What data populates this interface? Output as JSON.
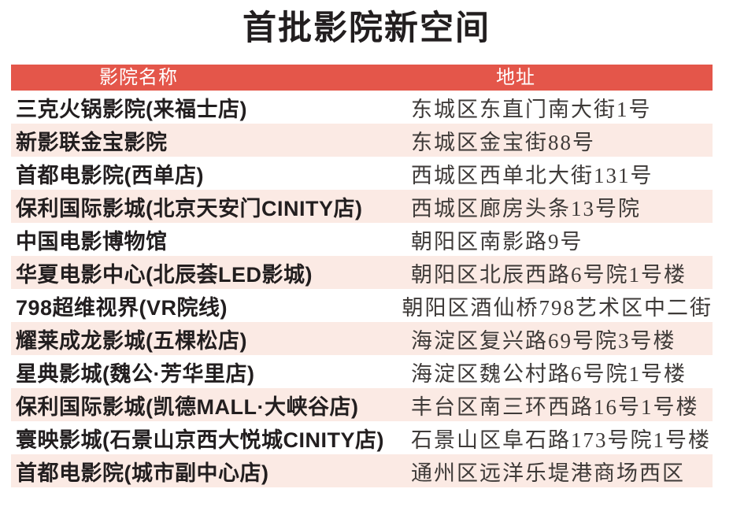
{
  "page": {
    "title": "首批影院新空间"
  },
  "colors": {
    "header_bg": "#e4564a",
    "row_alt_bg": "#fbeae4",
    "header_text": "#ffffff",
    "name_text": "#221e1f",
    "address_text": "#3e3a38"
  },
  "chart_data": {
    "type": "table",
    "title": "首批影院新空间",
    "columns": [
      "影院名称",
      "地址"
    ],
    "rows": [
      [
        "三克火锅影院(来福士店)",
        "东城区东直门南大街1号"
      ],
      [
        "新影联金宝影院",
        "东城区金宝街88号"
      ],
      [
        "首都电影院(西单店)",
        "西城区西单北大街131号"
      ],
      [
        "保利国际影城(北京天安门CINITY店)",
        "西城区廊房头条13号院"
      ],
      [
        "中国电影博物馆",
        "朝阳区南影路9号"
      ],
      [
        "华夏电影中心(北辰荟LED影城)",
        "朝阳区北辰西路6号院1号楼"
      ],
      [
        "798超维视界(VR院线)",
        "朝阳区酒仙桥798艺术区中二街"
      ],
      [
        "耀莱成龙影城(五棵松店)",
        "海淀区复兴路69号院3号楼"
      ],
      [
        "星典影城(魏公·芳华里店)",
        "海淀区魏公村路6号院1号楼"
      ],
      [
        "保利国际影城(凯德MALL·大峡谷店)",
        "丰台区南三环西路16号1号楼"
      ],
      [
        "寰映影城(石景山京西大悦城CINITY店)",
        "石景山区阜石路173号院1号楼"
      ],
      [
        "首都电影院(城市副中心店)",
        "通州区远洋乐堤港商场西区"
      ]
    ],
    "layout": {
      "legend": "none",
      "grid": "off",
      "row_striping": "alternate white / light pink, starting white",
      "header_style": "solid red bar with white text"
    }
  }
}
